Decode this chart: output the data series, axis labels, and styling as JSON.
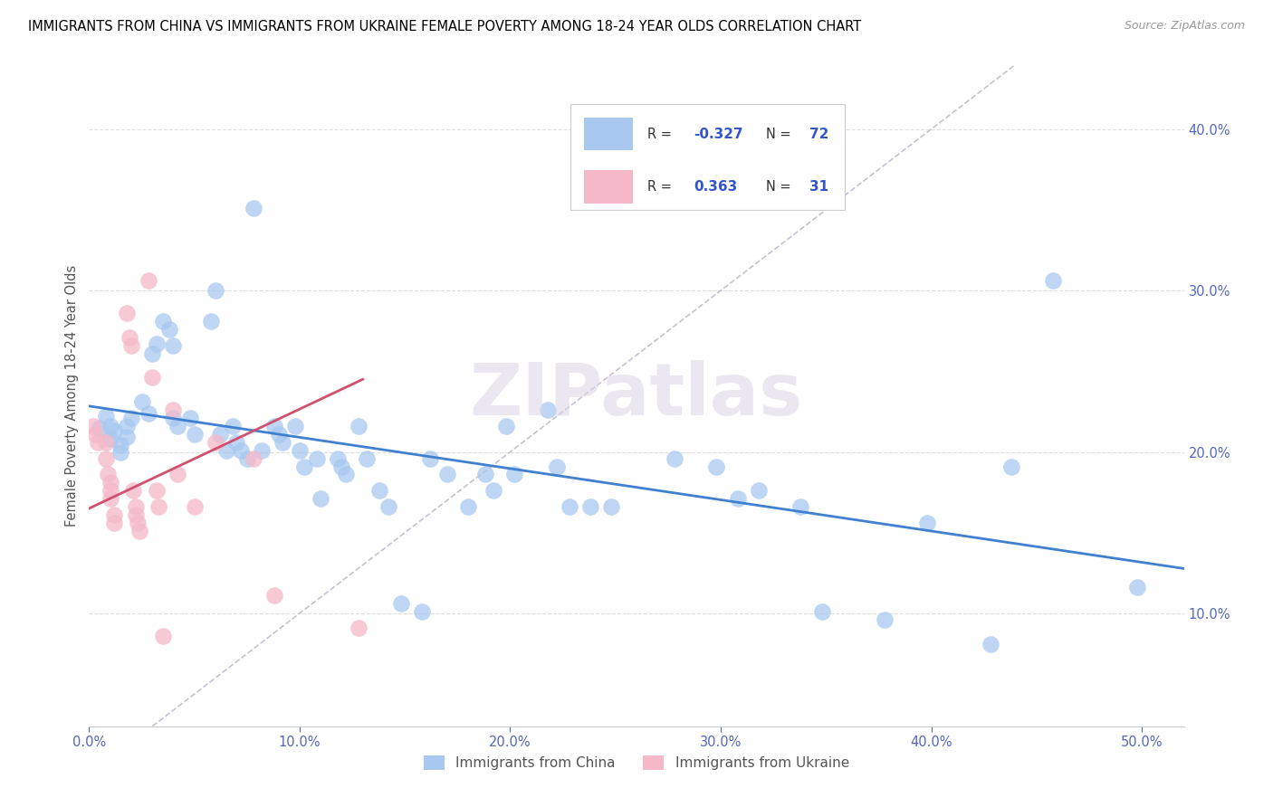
{
  "title": "IMMIGRANTS FROM CHINA VS IMMIGRANTS FROM UKRAINE FEMALE POVERTY AMONG 18-24 YEAR OLDS CORRELATION CHART",
  "source": "Source: ZipAtlas.com",
  "ylabel": "Female Poverty Among 18-24 Year Olds",
  "ytick_vals": [
    0.1,
    0.2,
    0.3,
    0.4
  ],
  "ytick_labels": [
    "10.0%",
    "20.0%",
    "30.0%",
    "40.0%"
  ],
  "xtick_vals": [
    0.0,
    0.1,
    0.2,
    0.3,
    0.4,
    0.5
  ],
  "xtick_labels": [
    "0.0%",
    "10.0%",
    "20.0%",
    "30.0%",
    "40.0%",
    "50.0%"
  ],
  "xlim": [
    0.0,
    0.52
  ],
  "ylim": [
    0.03,
    0.44
  ],
  "china_R": "-0.327",
  "china_N": "72",
  "ukraine_R": "0.363",
  "ukraine_N": "31",
  "china_color": "#A8C8F0",
  "ukraine_color": "#F5B8C8",
  "china_line_color": "#4080D0",
  "ukraine_line_color": "#D05070",
  "diagonal_color": "#C8C0D0",
  "watermark": "ZIPatlas",
  "china_line_x0": 0.0,
  "china_line_y0": 0.228,
  "china_line_x1": 0.52,
  "china_line_y1": 0.128,
  "ukraine_line_x0": 0.0,
  "ukraine_line_y0": 0.165,
  "ukraine_line_x1": 0.13,
  "ukraine_line_y1": 0.245,
  "china_points": [
    [
      0.005,
      0.215
    ],
    [
      0.008,
      0.222
    ],
    [
      0.01,
      0.216
    ],
    [
      0.012,
      0.213
    ],
    [
      0.01,
      0.208
    ],
    [
      0.015,
      0.204
    ],
    [
      0.015,
      0.2
    ],
    [
      0.018,
      0.209
    ],
    [
      0.018,
      0.216
    ],
    [
      0.02,
      0.221
    ],
    [
      0.025,
      0.231
    ],
    [
      0.028,
      0.224
    ],
    [
      0.03,
      0.261
    ],
    [
      0.032,
      0.267
    ],
    [
      0.035,
      0.281
    ],
    [
      0.038,
      0.276
    ],
    [
      0.04,
      0.266
    ],
    [
      0.04,
      0.221
    ],
    [
      0.042,
      0.216
    ],
    [
      0.048,
      0.221
    ],
    [
      0.05,
      0.211
    ],
    [
      0.058,
      0.281
    ],
    [
      0.06,
      0.3
    ],
    [
      0.062,
      0.211
    ],
    [
      0.065,
      0.201
    ],
    [
      0.068,
      0.216
    ],
    [
      0.07,
      0.206
    ],
    [
      0.072,
      0.201
    ],
    [
      0.075,
      0.196
    ],
    [
      0.078,
      0.351
    ],
    [
      0.082,
      0.201
    ],
    [
      0.088,
      0.216
    ],
    [
      0.09,
      0.211
    ],
    [
      0.092,
      0.206
    ],
    [
      0.098,
      0.216
    ],
    [
      0.1,
      0.201
    ],
    [
      0.102,
      0.191
    ],
    [
      0.108,
      0.196
    ],
    [
      0.11,
      0.171
    ],
    [
      0.118,
      0.196
    ],
    [
      0.12,
      0.191
    ],
    [
      0.122,
      0.186
    ],
    [
      0.128,
      0.216
    ],
    [
      0.132,
      0.196
    ],
    [
      0.138,
      0.176
    ],
    [
      0.142,
      0.166
    ],
    [
      0.148,
      0.106
    ],
    [
      0.158,
      0.101
    ],
    [
      0.162,
      0.196
    ],
    [
      0.17,
      0.186
    ],
    [
      0.18,
      0.166
    ],
    [
      0.188,
      0.186
    ],
    [
      0.192,
      0.176
    ],
    [
      0.198,
      0.216
    ],
    [
      0.202,
      0.186
    ],
    [
      0.218,
      0.226
    ],
    [
      0.222,
      0.191
    ],
    [
      0.228,
      0.166
    ],
    [
      0.238,
      0.166
    ],
    [
      0.248,
      0.166
    ],
    [
      0.278,
      0.196
    ],
    [
      0.298,
      0.191
    ],
    [
      0.308,
      0.171
    ],
    [
      0.318,
      0.176
    ],
    [
      0.338,
      0.166
    ],
    [
      0.348,
      0.101
    ],
    [
      0.378,
      0.096
    ],
    [
      0.398,
      0.156
    ],
    [
      0.428,
      0.081
    ],
    [
      0.438,
      0.191
    ],
    [
      0.458,
      0.306
    ],
    [
      0.498,
      0.116
    ]
  ],
  "ukraine_points": [
    [
      0.002,
      0.216
    ],
    [
      0.003,
      0.211
    ],
    [
      0.004,
      0.206
    ],
    [
      0.008,
      0.206
    ],
    [
      0.008,
      0.196
    ],
    [
      0.009,
      0.186
    ],
    [
      0.01,
      0.181
    ],
    [
      0.01,
      0.176
    ],
    [
      0.01,
      0.171
    ],
    [
      0.012,
      0.161
    ],
    [
      0.012,
      0.156
    ],
    [
      0.018,
      0.286
    ],
    [
      0.019,
      0.271
    ],
    [
      0.02,
      0.266
    ],
    [
      0.021,
      0.176
    ],
    [
      0.022,
      0.166
    ],
    [
      0.022,
      0.161
    ],
    [
      0.023,
      0.156
    ],
    [
      0.024,
      0.151
    ],
    [
      0.028,
      0.306
    ],
    [
      0.03,
      0.246
    ],
    [
      0.032,
      0.176
    ],
    [
      0.033,
      0.166
    ],
    [
      0.035,
      0.086
    ],
    [
      0.04,
      0.226
    ],
    [
      0.042,
      0.186
    ],
    [
      0.05,
      0.166
    ],
    [
      0.06,
      0.206
    ],
    [
      0.078,
      0.196
    ],
    [
      0.088,
      0.111
    ],
    [
      0.128,
      0.091
    ]
  ]
}
